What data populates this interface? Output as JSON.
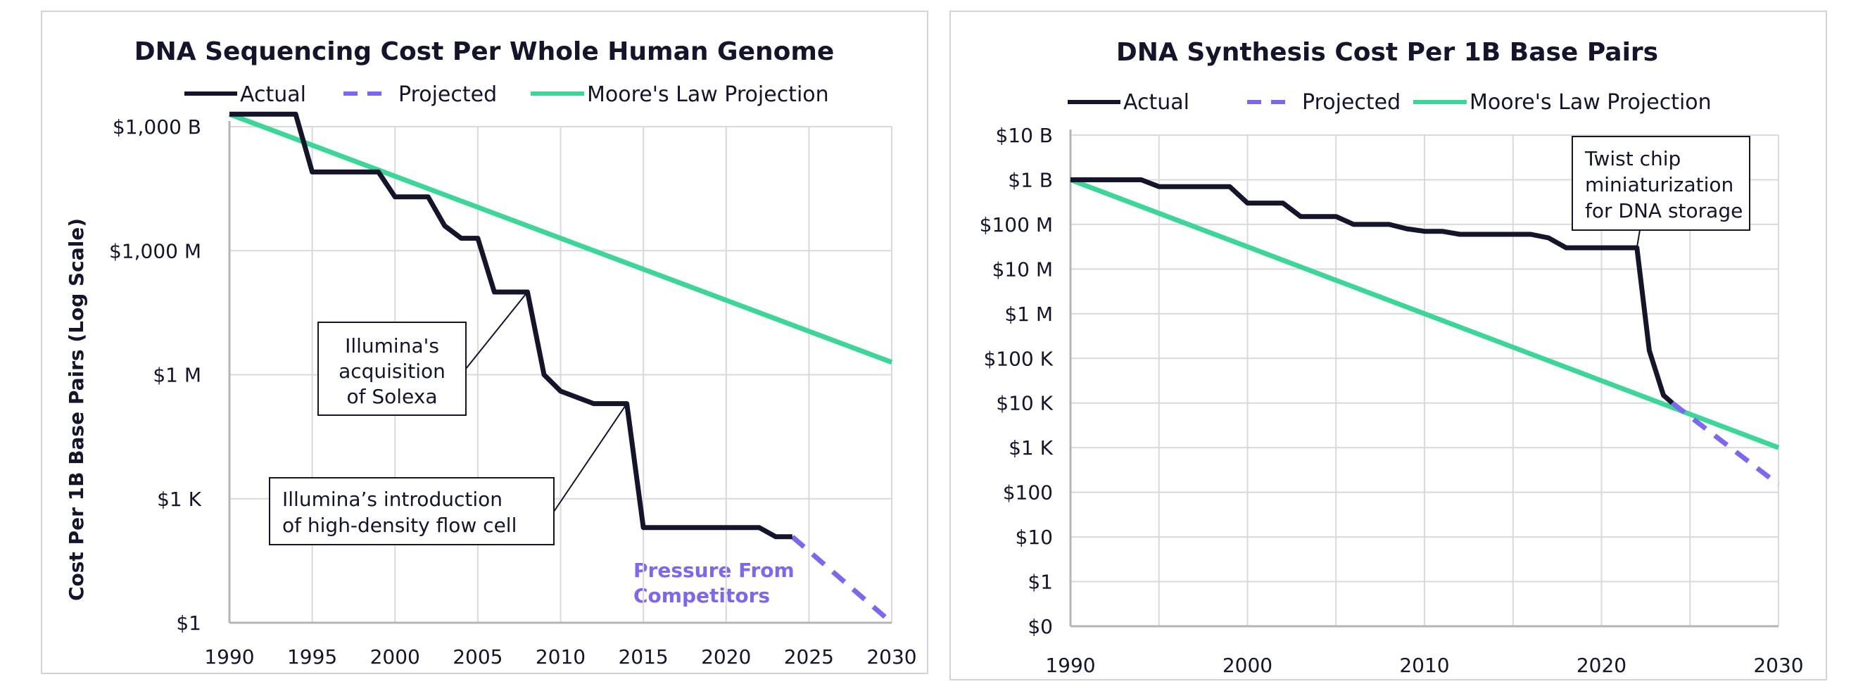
{
  "colors": {
    "actual": "#14142b",
    "projected": "#7b68ee",
    "moore": "#3dd598",
    "grid": "#d9d9d9",
    "axis": "#b5b5b5"
  },
  "chart_data": [
    {
      "type": "line",
      "title": "DNA Sequencing Cost Per Whole Human Genome",
      "ylabel": "Cost Per 1B Base Pairs (Log Scale)",
      "xlabel": "",
      "y_scale": "log",
      "xlim": [
        1990,
        2030
      ],
      "ylim": [
        1,
        1000000000000
      ],
      "grid": true,
      "legend_position": "top",
      "x_ticks": [
        1990,
        1995,
        2000,
        2005,
        2010,
        2015,
        2020,
        2025,
        2030
      ],
      "y_ticks": [
        {
          "value": 1,
          "label": "$1"
        },
        {
          "value": 1000,
          "label": "$1 K"
        },
        {
          "value": 1000000,
          "label": "$1 M"
        },
        {
          "value": 1000000000,
          "label": "$1,000 M"
        },
        {
          "value": 1000000000000,
          "label": "$1,000 B"
        }
      ],
      "series": [
        {
          "name": "Actual",
          "x": [
            1990,
            1994,
            1995,
            1999,
            2000,
            2002,
            2003,
            2004,
            2005,
            2006,
            2008,
            2009,
            2010,
            2012,
            2014,
            2015,
            2022,
            2023,
            2024
          ],
          "y": [
            2000000000000,
            2000000000000,
            80000000000,
            80000000000,
            20000000000,
            20000000000,
            4000000000,
            2000000000,
            2000000000,
            100000000,
            100000000,
            1000000,
            400000,
            200000,
            200000,
            200,
            200,
            120,
            120
          ]
        },
        {
          "name": "Projected",
          "x": [
            2024,
            2030
          ],
          "y": [
            120,
            1
          ]
        },
        {
          "name": "Moore's Law Projection",
          "x": [
            1990,
            2030
          ],
          "y": [
            2000000000000,
            2000000
          ]
        }
      ],
      "annotations": [
        {
          "text": [
            "Illumina's",
            "acquisition",
            "of Solexa"
          ],
          "target": [
            2008,
            100000000
          ]
        },
        {
          "text": [
            "Illumina’s introduction",
            "of high-density flow cell"
          ],
          "target": [
            2014,
            200000
          ]
        },
        {
          "text": [
            "Pressure From",
            "Competitors"
          ]
        }
      ]
    },
    {
      "type": "line",
      "title": "DNA Synthesis Cost Per 1B Base Pairs",
      "xlabel": "",
      "ylabel": "",
      "y_scale": "log",
      "xlim": [
        1990,
        2030
      ],
      "ylim": [
        0.1,
        10000000000
      ],
      "grid": true,
      "legend_position": "top",
      "x_ticks": [
        1990,
        2000,
        2010,
        2020,
        2030
      ],
      "y_ticks": [
        {
          "value": 0.1,
          "label": "$0"
        },
        {
          "value": 1,
          "label": "$1"
        },
        {
          "value": 10,
          "label": "$10"
        },
        {
          "value": 100,
          "label": "$100"
        },
        {
          "value": 1000,
          "label": "$1 K"
        },
        {
          "value": 10000,
          "label": "$10 K"
        },
        {
          "value": 100000,
          "label": "$100 K"
        },
        {
          "value": 1000000,
          "label": "$1 M"
        },
        {
          "value": 10000000,
          "label": "$10 M"
        },
        {
          "value": 100000000,
          "label": "$100 M"
        },
        {
          "value": 1000000000,
          "label": "$1 B"
        },
        {
          "value": 10000000000,
          "label": "$10 B"
        }
      ],
      "series": [
        {
          "name": "Actual",
          "x": [
            1990,
            1994,
            1995,
            1999,
            2000,
            2002,
            2003,
            2005,
            2006,
            2008,
            2009,
            2010,
            2011,
            2012,
            2016,
            2017,
            2018,
            2022,
            2022.7,
            2023.5,
            2024
          ],
          "y": [
            1000000000,
            1000000000,
            700000000,
            700000000,
            300000000,
            300000000,
            150000000,
            150000000,
            100000000,
            100000000,
            80000000,
            70000000,
            70000000,
            60000000,
            60000000,
            50000000,
            30000000,
            30000000,
            150000,
            15000,
            10000
          ]
        },
        {
          "name": "Projected",
          "x": [
            2024,
            2030
          ],
          "y": [
            10000,
            150
          ]
        },
        {
          "name": "Moore's Law Projection",
          "x": [
            1990,
            2030
          ],
          "y": [
            1000000000,
            1000
          ]
        }
      ],
      "annotations": [
        {
          "text": [
            "Twist chip",
            "miniaturization",
            "for DNA storage"
          ],
          "target": [
            2022,
            30000000
          ]
        }
      ]
    }
  ]
}
